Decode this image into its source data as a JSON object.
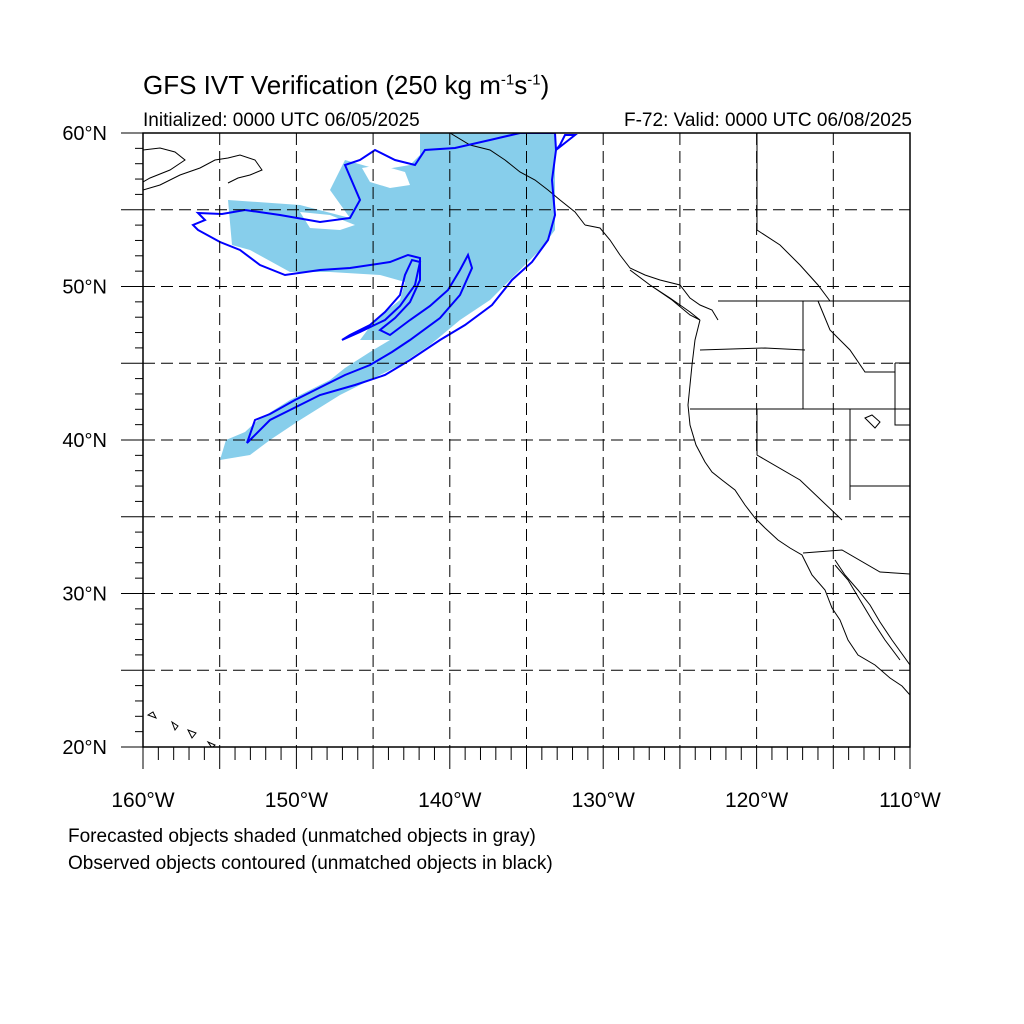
{
  "title": {
    "main": "GFS IVT Verification (250 kg m",
    "exp1": "-1",
    "middle": "s",
    "exp2": "-1",
    "close": ")"
  },
  "initialized": "Initialized: 0000 UTC 06/05/2025",
  "valid": "F-72: Valid: 0000 UTC 06/08/2025",
  "notes": {
    "forecast": "Forecasted objects shaded (unmatched objects in gray)",
    "observed": "Observed objects contoured (unmatched objects in black)"
  },
  "map": {
    "lon_range": [
      -160,
      -110
    ],
    "lat_range": [
      20,
      60
    ],
    "lat_labels": [
      "20°N",
      "30°N",
      "40°N",
      "50°N",
      "60°N"
    ],
    "lon_labels": [
      "160°W",
      "150°W",
      "140°W",
      "130°W",
      "120°W",
      "110°W"
    ],
    "forecast_fill_color": "#87ceeb",
    "observed_contour_color": "#0000ff",
    "coastline_color": "#000000"
  }
}
